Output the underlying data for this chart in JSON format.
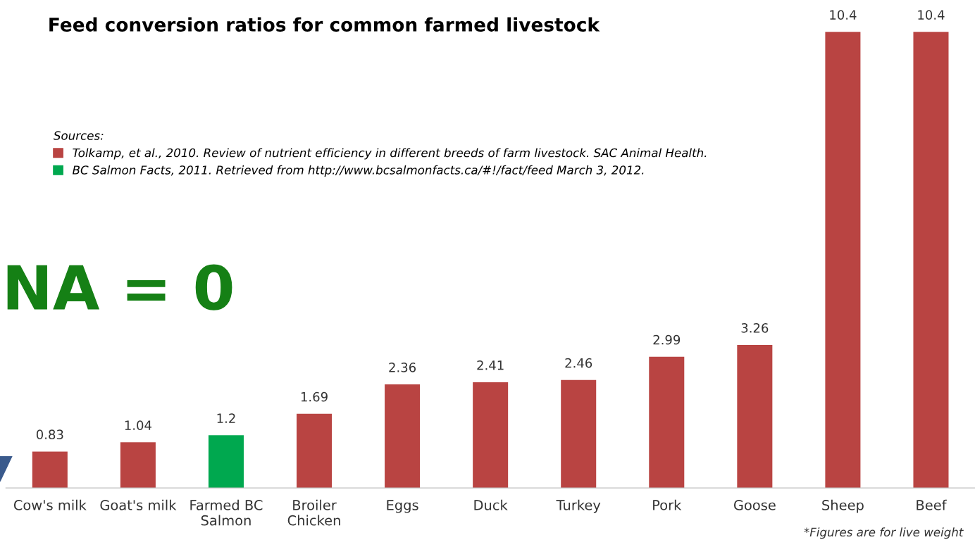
{
  "chart_data": {
    "type": "bar",
    "title": "Feed conversion ratios for common farmed livestock",
    "categories": [
      "Cow's milk",
      "Goat's milk",
      "Farmed BC\nSalmon",
      "Broiler\nChicken",
      "Eggs",
      "Duck",
      "Turkey",
      "Pork",
      "Goose",
      "Sheep",
      "Beef"
    ],
    "series": [
      {
        "name": "Tolkamp, et al., 2010. Review of nutrient efficiency in different breeds of farm livestock. SAC Animal Health.",
        "color": "#b94442",
        "values": [
          0.83,
          1.04,
          null,
          1.69,
          2.36,
          2.41,
          2.46,
          2.99,
          3.26,
          10.4,
          10.4
        ]
      },
      {
        "name": "BC Salmon Facts, 2011. Retrieved from http://www.bcsalmonfacts.ca/#!/fact/feed March 3, 2012.",
        "color": "#00a84f",
        "values": [
          null,
          null,
          1.2,
          null,
          null,
          null,
          null,
          null,
          null,
          null,
          null
        ]
      }
    ],
    "legend_title": "Sources:",
    "legend": "top left",
    "data_labels": true,
    "tick_labels": "x",
    "grid": false,
    "annotations": [
      "NA = 0",
      "*Figures are for live weight"
    ]
  }
}
